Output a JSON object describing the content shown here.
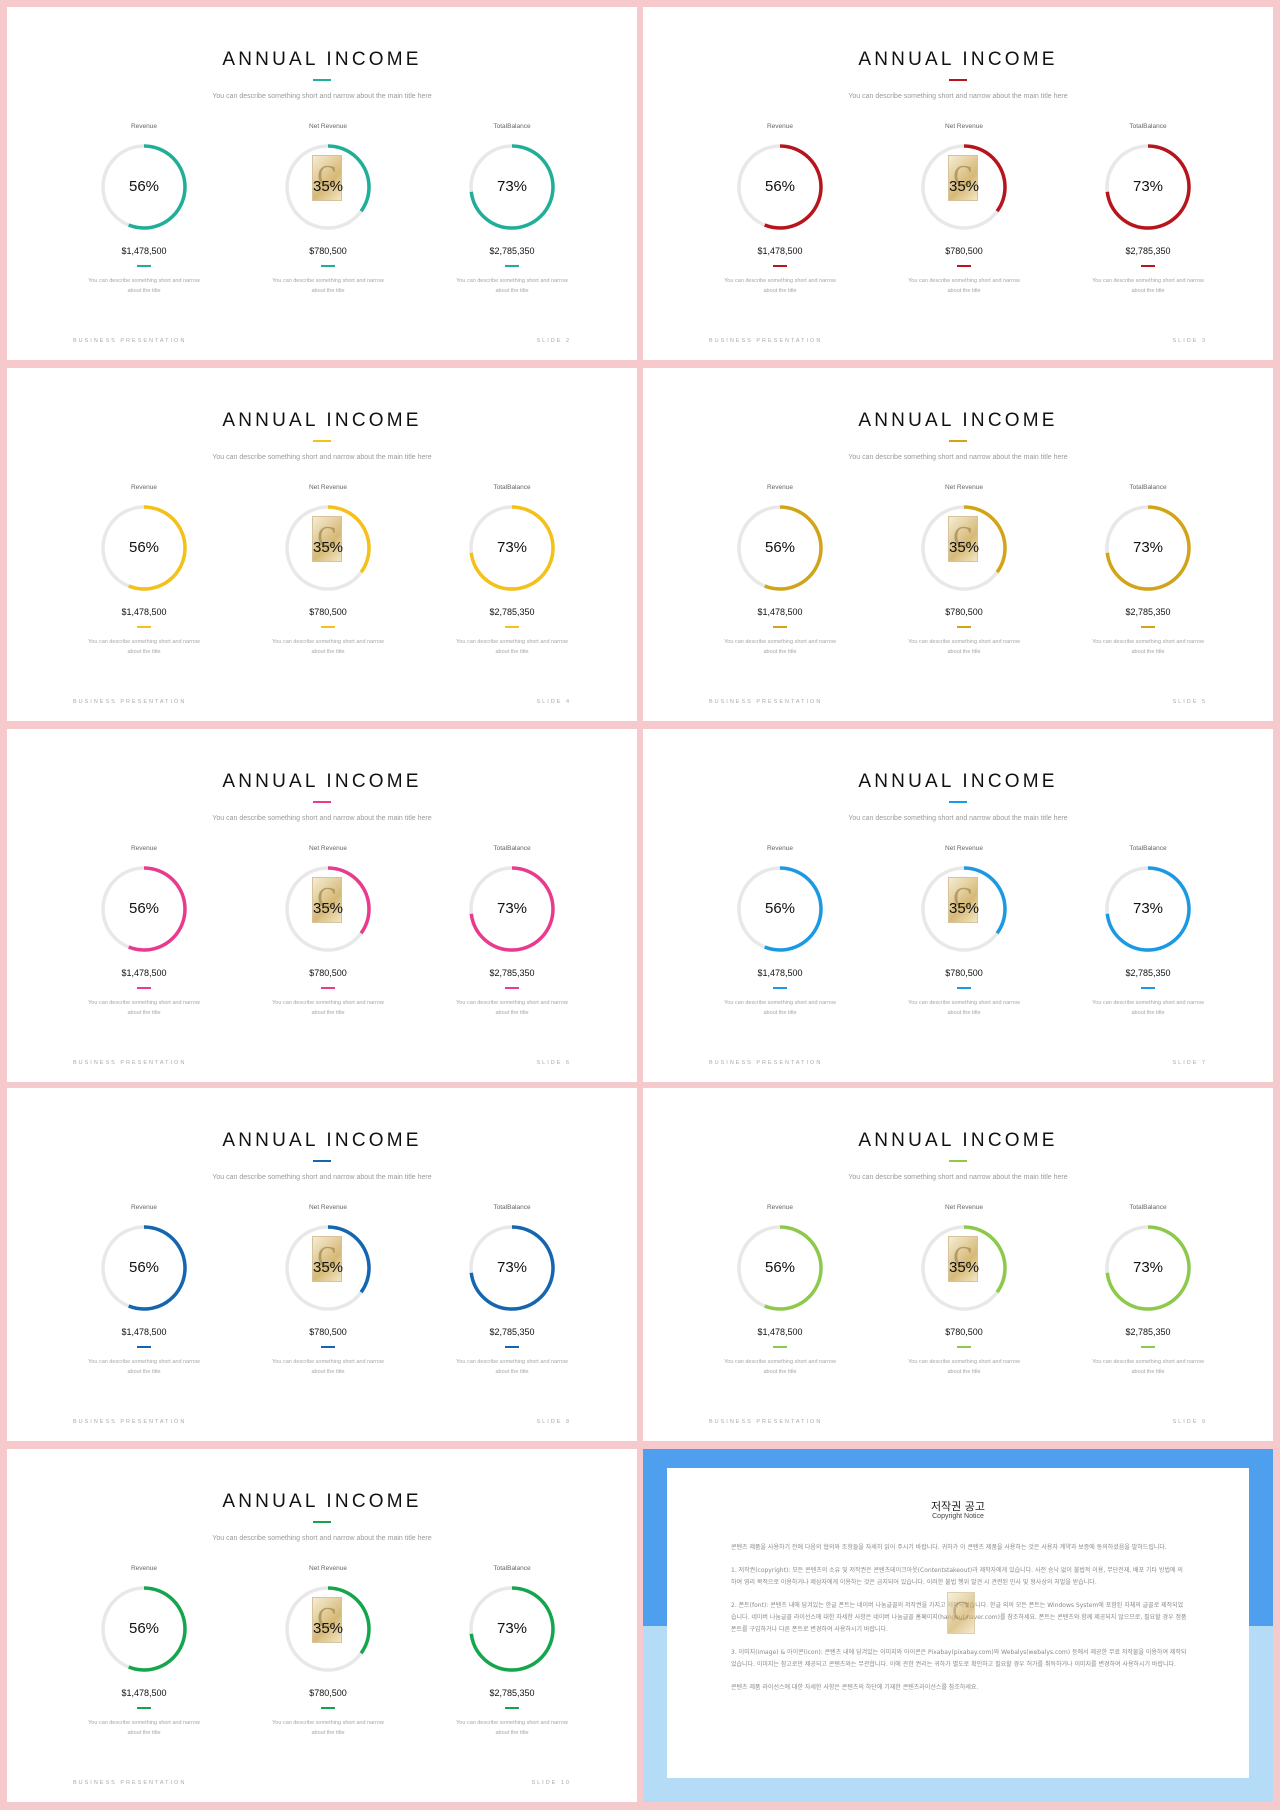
{
  "common": {
    "title": "ANNUAL INCOME",
    "subtitle": "You can describe something short and narrow about the main title here",
    "footer_left": "BUSINESS PRESENTATION",
    "watermark_glyph": "C",
    "columns": [
      {
        "label": "Revenue",
        "percent": 56,
        "percent_text": "56%",
        "value": "$1,478,500",
        "desc1": "You can describe something short and narrow",
        "desc2": "about the title"
      },
      {
        "label": "Net Revenue",
        "percent": 35,
        "percent_text": "35%",
        "value": "$780,500",
        "desc1": "You can describe something short and narrow",
        "desc2": "about the title"
      },
      {
        "label": "TotalBalance",
        "percent": 73,
        "percent_text": "73%",
        "value": "$2,785,350",
        "desc1": "You can describe something short and narrow",
        "desc2": "about the title"
      }
    ],
    "ring_track_color": "#e8e8e8"
  },
  "slides": [
    {
      "footer_right": "SLIDE 2",
      "accent": "#1fae98"
    },
    {
      "footer_right": "SLIDE 3",
      "accent": "#b8141b"
    },
    {
      "footer_right": "SLIDE 4",
      "accent": "#f5c018"
    },
    {
      "footer_right": "SLIDE 5",
      "accent": "#d2a417"
    },
    {
      "footer_right": "SLIDE 6",
      "accent": "#ea3a8d"
    },
    {
      "footer_right": "SLIDE 7",
      "accent": "#1b9ae4"
    },
    {
      "footer_right": "SLIDE 8",
      "accent": "#1466b0"
    },
    {
      "footer_right": "SLIDE 9",
      "accent": "#8dc94a"
    },
    {
      "footer_right": "SLIDE 10",
      "accent": "#14a64d"
    }
  ],
  "copyright": {
    "title": "저작권 공고",
    "subtitle": "Copyright Notice",
    "intro": "콘텐츠 제품을 사용하기 전에 다음의 협의와 조항들을 자세히 읽어 주시기 바랍니다. 귀하가 이 콘텐츠 제품을 사용하는 것은 사용자 계약과 보증에 동의하셨음을 말하드립니다.",
    "section1": "1. 저작권(copyright): 모든 콘텐츠의 소유 및 저작권은 콘텐츠테이크아웃(Contentstakeout)과 제작자에게 있습니다. 사전 승낙 없이 불법적 이용, 무단전재, 배포 기타 방법에 의하여 영리 목적으로 이용하거나 제삼자에게 이용하는 것은 금지되어 있습니다. 이러한 불법 행위 발견 시 관련된 민사 및 형사상의 처벌을 받습니다.",
    "section2": "2. 폰트(font): 콘텐츠 내에 담겨있는 한글 폰트는 네이버 나눔글꼴의 저작권을 가지고 제작되었습니다. 한글 외의 모든 폰트는 Windows System에 포함된 자체의 글꼴로 제작되었습니다. 네이버 나눔글꼴 라이선스에 대한 자세한 사항은 네이버 나눔글꼴 홈페이지(hangeul.naver.com)를 참조하세요. 폰트는 콘텐츠와 함께 제공되지 않으므로, 필요할 경우 정품 폰트를 구입하거나 다른 폰트로 변경하여 사용하시기 바랍니다.",
    "section3": "3. 이미지(image) & 아이콘(icon): 콘텐츠 내에 담겨있는 이미지와 아이콘은 Pixabay(pixabay.com)와 Webalys(webalys.com) 등에서 제공한 무료 저작물을 이용하여 제작되었습니다. 이미지는 참고로만 제공되고 콘텐츠와는 무관합니다. 이에 관한 권리는 귀하가 별도로 확인하고 필요할 경우 허가를 취득하거나 이미지를 변경하여 사용하시기 바랍니다.",
    "outro": "콘텐츠 제품 라이선스에 대한 자세한 사항은 콘텐츠의 하단에 기재한 콘텐츠라이선스를 참조하세요.",
    "accent_top": "#4ea0ee",
    "accent_bottom": "#b5dcf7"
  }
}
